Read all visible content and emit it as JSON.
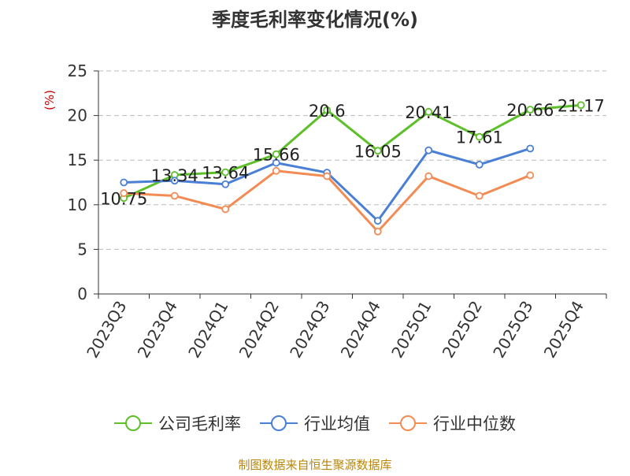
{
  "chart_data": {
    "type": "line",
    "title": "季度毛利率变化情况(%)",
    "ylabel": "(%)",
    "xlabel": "",
    "categories": [
      "2023Q3",
      "2023Q4",
      "2024Q1",
      "2024Q2",
      "2024Q3",
      "2024Q4",
      "2025Q1",
      "2025Q2",
      "2025Q3",
      "2025Q4"
    ],
    "ylim": [
      0,
      25
    ],
    "yticks": [
      0,
      5,
      10,
      15,
      20,
      25
    ],
    "grid": true,
    "legend_position": "bottom",
    "series": [
      {
        "name": "公司毛利率",
        "color": "#5dbf2a",
        "show_labels": true,
        "values": [
          10.75,
          13.34,
          13.64,
          15.66,
          20.6,
          16.05,
          20.41,
          17.61,
          20.66,
          21.17
        ]
      },
      {
        "name": "行业均值",
        "color": "#4a7fd6",
        "show_labels": false,
        "values": [
          12.5,
          12.7,
          12.3,
          14.7,
          13.6,
          8.2,
          16.1,
          14.5,
          16.3,
          null
        ]
      },
      {
        "name": "行业中位数",
        "color": "#f28b54",
        "show_labels": false,
        "values": [
          11.3,
          11.0,
          9.5,
          13.8,
          13.2,
          7.0,
          13.2,
          11.0,
          13.3,
          null
        ]
      }
    ]
  },
  "footer": {
    "source": "制图数据来自恒生聚源数据库"
  },
  "colors": {
    "title": "#333333",
    "axis": "#333333",
    "grid": "#bbbbbb",
    "ylabel": "#cc0000",
    "footer": "#b8860b"
  }
}
